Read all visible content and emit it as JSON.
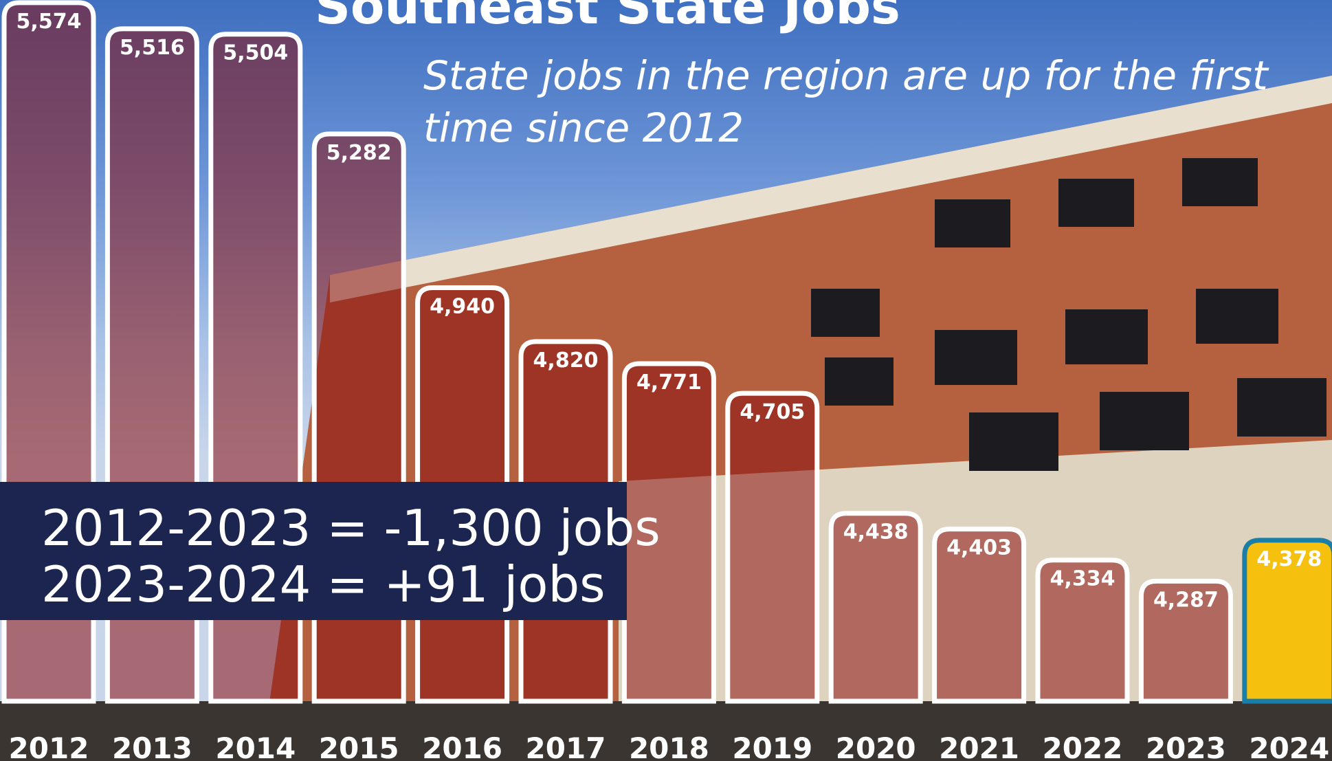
{
  "chart_data": {
    "type": "bar",
    "title": "Southeast State Jobs",
    "subtitle": "State jobs in the region are up for the first time since 2012",
    "categories": [
      "2012",
      "2013",
      "2014",
      "2015",
      "2016",
      "2017",
      "2018",
      "2019",
      "2020",
      "2021",
      "2022",
      "2023",
      "2024"
    ],
    "values": [
      5574,
      5516,
      5504,
      5282,
      4940,
      4820,
      4771,
      4705,
      4438,
      4403,
      4334,
      4287,
      4378
    ],
    "value_labels": [
      "5,574",
      "5,516",
      "5,504",
      "5,282",
      "4,940",
      "4,820",
      "4,771",
      "4,705",
      "4,438",
      "4,403",
      "4,334",
      "4,287",
      "4,378"
    ],
    "colors": [
      "#8a1010",
      "#8a1010",
      "#8a1010",
      "#8a1010",
      "#8a1010",
      "#8a1010",
      "#8a1010",
      "#8a1010",
      "#8a1010",
      "#8a1010",
      "#8a1010",
      "#8a1010",
      "#f6c10e"
    ],
    "ylim": [
      4020,
      5580
    ],
    "annotations": [
      "2012-2023 = -1,300 jobs",
      "2023-2024 = +91 jobs"
    ]
  }
}
